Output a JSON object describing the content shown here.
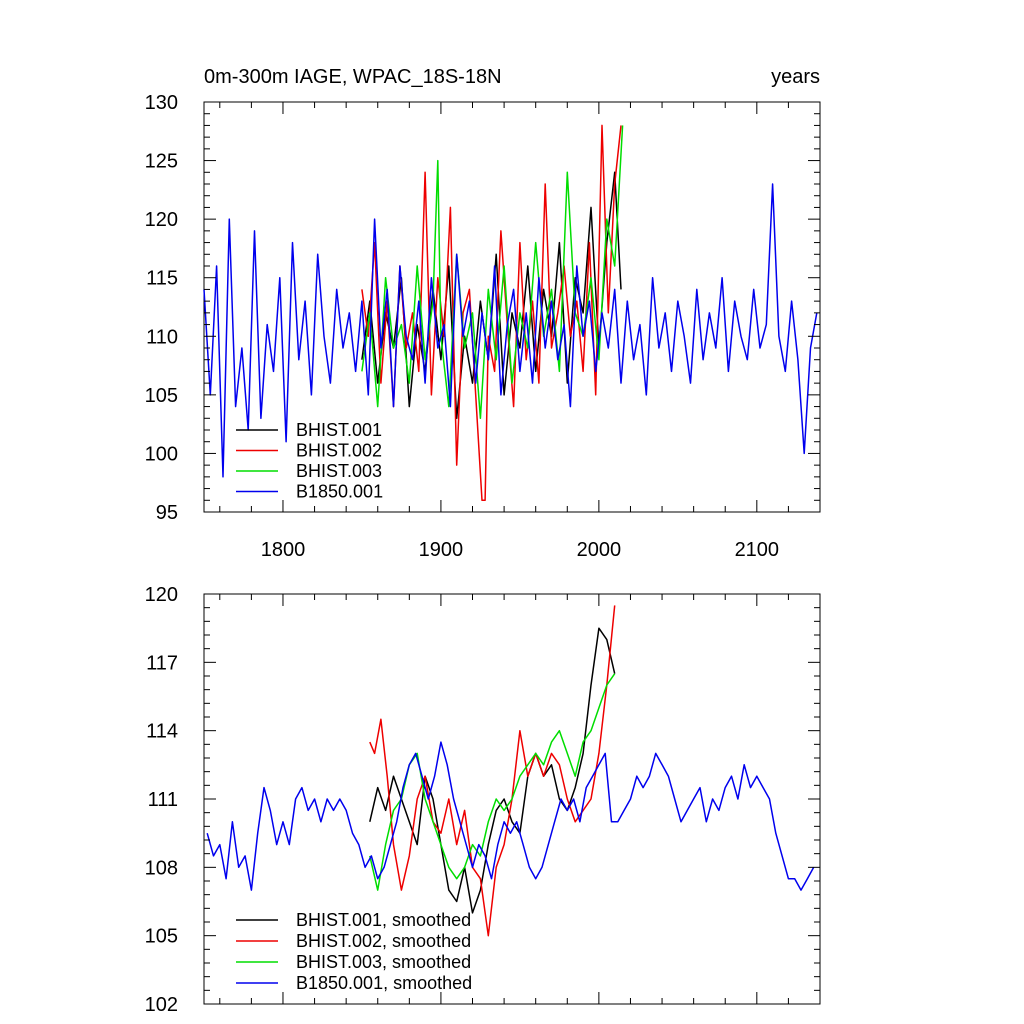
{
  "chart_data": [
    {
      "type": "line",
      "title": "0m-300m IAGE, WPAC_18S-18N",
      "units": "years",
      "xlim": [
        1750,
        2140
      ],
      "ylim": [
        95,
        130
      ],
      "xticks": [
        1800,
        1900,
        2000,
        2100
      ],
      "xtick_labels": [
        "1800",
        "1900",
        "2000",
        "2100"
      ],
      "yticks": [
        95,
        100,
        105,
        110,
        115,
        120,
        125,
        130
      ],
      "ytick_labels": [
        "95",
        "100",
        "105",
        "110",
        "115",
        "120",
        "125",
        "130"
      ],
      "legend": {
        "position": "bottom-left",
        "labels": [
          "BHIST.001",
          "BHIST.002",
          "BHIST.003",
          "B1850.001"
        ]
      },
      "series": [
        {
          "name": "BHIST.001",
          "color": "#000000",
          "x": [
            1850,
            1855,
            1860,
            1865,
            1870,
            1875,
            1880,
            1885,
            1890,
            1895,
            1900,
            1905,
            1910,
            1915,
            1920,
            1925,
            1930,
            1935,
            1940,
            1945,
            1950,
            1955,
            1960,
            1965,
            1970,
            1975,
            1980,
            1985,
            1990,
            1995,
            2000,
            2005,
            2010,
            2014
          ],
          "values": [
            108,
            113,
            106,
            112,
            109,
            115,
            104,
            111,
            107,
            114,
            108,
            116,
            103,
            110,
            106,
            113,
            108,
            117,
            105,
            112,
            109,
            116,
            107,
            114,
            110,
            118,
            106,
            115,
            112,
            121,
            109,
            118,
            124,
            114
          ]
        },
        {
          "name": "BHIST.002",
          "color": "#ee0000",
          "x": [
            1850,
            1854,
            1858,
            1862,
            1866,
            1870,
            1874,
            1878,
            1882,
            1886,
            1890,
            1894,
            1898,
            1902,
            1906,
            1910,
            1914,
            1918,
            1922,
            1926,
            1928,
            1930,
            1934,
            1938,
            1942,
            1946,
            1950,
            1954,
            1958,
            1962,
            1966,
            1970,
            1974,
            1978,
            1982,
            1986,
            1990,
            1994,
            1998,
            2002,
            2006,
            2010,
            2014
          ],
          "values": [
            114,
            110,
            118,
            106,
            113,
            104,
            116,
            109,
            112,
            107,
            124,
            105,
            115,
            110,
            121,
            99,
            112,
            114,
            105,
            96,
            96,
            110,
            107,
            119,
            111,
            104,
            118,
            108,
            113,
            106,
            123,
            109,
            112,
            116,
            110,
            113,
            107,
            118,
            105,
            128,
            112,
            123,
            128
          ]
        },
        {
          "name": "BHIST.003",
          "color": "#00dd00",
          "x": [
            1850,
            1855,
            1860,
            1865,
            1870,
            1875,
            1880,
            1885,
            1890,
            1895,
            1898,
            1900,
            1905,
            1910,
            1915,
            1920,
            1925,
            1930,
            1935,
            1940,
            1945,
            1950,
            1955,
            1960,
            1965,
            1970,
            1975,
            1980,
            1985,
            1990,
            1995,
            2000,
            2005,
            2010,
            2015
          ],
          "values": [
            107,
            112,
            104,
            115,
            109,
            111,
            106,
            116,
            108,
            113,
            125,
            110,
            104,
            117,
            109,
            112,
            103,
            114,
            108,
            116,
            106,
            112,
            109,
            118,
            110,
            114,
            107,
            124,
            112,
            110,
            115,
            108,
            120,
            116,
            128
          ]
        },
        {
          "name": "B1850.001",
          "color": "#0000ee",
          "x": [
            1750,
            1754,
            1758,
            1762,
            1766,
            1770,
            1774,
            1778,
            1782,
            1786,
            1790,
            1794,
            1798,
            1802,
            1806,
            1810,
            1814,
            1818,
            1822,
            1826,
            1830,
            1834,
            1838,
            1842,
            1846,
            1850,
            1854,
            1858,
            1862,
            1866,
            1870,
            1874,
            1878,
            1882,
            1886,
            1890,
            1894,
            1898,
            1902,
            1906,
            1910,
            1914,
            1918,
            1922,
            1926,
            1930,
            1934,
            1938,
            1942,
            1946,
            1950,
            1954,
            1958,
            1962,
            1966,
            1970,
            1974,
            1978,
            1982,
            1986,
            1990,
            1994,
            1998,
            2002,
            2006,
            2010,
            2014,
            2018,
            2022,
            2026,
            2030,
            2034,
            2038,
            2042,
            2046,
            2050,
            2054,
            2058,
            2062,
            2066,
            2070,
            2074,
            2078,
            2082,
            2086,
            2090,
            2094,
            2098,
            2102,
            2106,
            2110,
            2114,
            2118,
            2122,
            2126,
            2130,
            2134,
            2138
          ],
          "values": [
            114,
            105,
            116,
            98,
            120,
            104,
            109,
            102,
            119,
            103,
            111,
            107,
            115,
            101,
            118,
            108,
            113,
            105,
            117,
            110,
            106,
            114,
            109,
            112,
            107,
            113,
            105,
            120,
            109,
            114,
            104,
            116,
            110,
            108,
            113,
            106,
            115,
            109,
            111,
            104,
            117,
            110,
            113,
            106,
            112,
            108,
            116,
            105,
            111,
            114,
            107,
            112,
            106,
            115,
            109,
            113,
            108,
            111,
            104,
            116,
            110,
            113,
            107,
            112,
            109,
            114,
            106,
            113,
            108,
            111,
            105,
            115,
            109,
            112,
            107,
            113,
            110,
            106,
            114,
            108,
            112,
            109,
            115,
            107,
            113,
            110,
            108,
            114,
            109,
            111,
            123,
            110,
            107,
            113,
            108,
            100,
            109,
            112
          ]
        }
      ]
    },
    {
      "type": "line",
      "xlim": [
        1750,
        2140
      ],
      "ylim": [
        102,
        120
      ],
      "xticks": [
        1800,
        1900,
        2000,
        2100
      ],
      "yticks": [
        102,
        105,
        108,
        111,
        114,
        117,
        120
      ],
      "ytick_labels": [
        "102",
        "105",
        "108",
        "111",
        "114",
        "117",
        "120"
      ],
      "legend": {
        "position": "bottom-left",
        "labels": [
          "BHIST.001, smoothed",
          "BHIST.002, smoothed",
          "BHIST.003, smoothed",
          "B1850.001, smoothed"
        ]
      },
      "series": [
        {
          "name": "BHIST.001, smoothed",
          "color": "#000000",
          "x": [
            1855,
            1860,
            1865,
            1870,
            1875,
            1880,
            1885,
            1890,
            1895,
            1900,
            1905,
            1910,
            1915,
            1920,
            1925,
            1930,
            1935,
            1940,
            1945,
            1950,
            1955,
            1960,
            1965,
            1970,
            1975,
            1980,
            1985,
            1990,
            1995,
            2000,
            2005,
            2010
          ],
          "values": [
            110,
            111.5,
            110.5,
            112,
            111,
            110,
            109,
            112,
            111,
            109,
            107,
            106.5,
            108,
            106,
            107,
            109,
            110.5,
            111,
            110,
            109.5,
            112,
            113,
            112,
            112.5,
            111,
            110.5,
            111.5,
            113,
            116,
            118.5,
            118,
            116.5
          ]
        },
        {
          "name": "BHIST.002, smoothed",
          "color": "#ee0000",
          "x": [
            1855,
            1858,
            1862,
            1866,
            1870,
            1875,
            1880,
            1885,
            1890,
            1895,
            1900,
            1905,
            1910,
            1915,
            1920,
            1925,
            1930,
            1935,
            1940,
            1945,
            1950,
            1955,
            1960,
            1965,
            1970,
            1975,
            1980,
            1985,
            1990,
            1995,
            2000,
            2005,
            2010
          ],
          "values": [
            113.5,
            113,
            114.5,
            112,
            109,
            107,
            108.5,
            111,
            112,
            110,
            109.5,
            111,
            109,
            110.5,
            108,
            107.5,
            105,
            108,
            109,
            111,
            114,
            112,
            113,
            112,
            113,
            112.5,
            111,
            110,
            110.5,
            111,
            113,
            116,
            119.5
          ]
        },
        {
          "name": "BHIST.003, smoothed",
          "color": "#00dd00",
          "x": [
            1855,
            1860,
            1865,
            1870,
            1875,
            1880,
            1885,
            1890,
            1895,
            1900,
            1905,
            1910,
            1915,
            1920,
            1925,
            1930,
            1935,
            1940,
            1945,
            1950,
            1955,
            1960,
            1965,
            1970,
            1975,
            1980,
            1985,
            1990,
            1995,
            2000,
            2005,
            2010
          ],
          "values": [
            108.5,
            107,
            109,
            110.5,
            111,
            112.5,
            113,
            111,
            110,
            109,
            108,
            107.5,
            108,
            109,
            108.5,
            110,
            111,
            110.5,
            111,
            112,
            112.5,
            113,
            112.5,
            113.5,
            114,
            113,
            112,
            113.5,
            114,
            115,
            116,
            116.5
          ]
        },
        {
          "name": "B1850.001, smoothed",
          "color": "#0000ee",
          "x": [
            1752,
            1756,
            1760,
            1764,
            1768,
            1772,
            1776,
            1780,
            1784,
            1788,
            1792,
            1796,
            1800,
            1804,
            1808,
            1812,
            1816,
            1820,
            1824,
            1828,
            1832,
            1836,
            1840,
            1844,
            1848,
            1852,
            1856,
            1860,
            1864,
            1868,
            1872,
            1876,
            1880,
            1884,
            1888,
            1892,
            1896,
            1900,
            1904,
            1908,
            1912,
            1916,
            1920,
            1924,
            1928,
            1932,
            1936,
            1940,
            1944,
            1948,
            1952,
            1956,
            1960,
            1964,
            1968,
            1972,
            1976,
            1980,
            1984,
            1988,
            1992,
            1996,
            2000,
            2004,
            2008,
            2012,
            2016,
            2020,
            2024,
            2028,
            2032,
            2036,
            2040,
            2044,
            2048,
            2052,
            2056,
            2060,
            2064,
            2068,
            2072,
            2076,
            2080,
            2084,
            2088,
            2092,
            2096,
            2100,
            2104,
            2108,
            2112,
            2116,
            2120,
            2124,
            2128,
            2132,
            2136
          ],
          "values": [
            109.5,
            108.5,
            109,
            107.5,
            110,
            108,
            108.5,
            107,
            109.5,
            111.5,
            110.5,
            109,
            110,
            109,
            111,
            111.5,
            110.5,
            111,
            110,
            111,
            110.5,
            111,
            110.5,
            109.5,
            109,
            108,
            108.5,
            107.5,
            108,
            109,
            110,
            111.5,
            112.5,
            113,
            112,
            111,
            112,
            113.5,
            112.5,
            111,
            110,
            109,
            108,
            109,
            108.5,
            107.5,
            109,
            110,
            109.5,
            110,
            109,
            108,
            107.5,
            108,
            109,
            110,
            111,
            110.5,
            111,
            110,
            111.5,
            112,
            112.5,
            113,
            110,
            110,
            110.5,
            111,
            112,
            111.5,
            112,
            113,
            112.5,
            112,
            111,
            110,
            110.5,
            111,
            111.5,
            110,
            111,
            110.5,
            111.5,
            112,
            111,
            112.5,
            111.5,
            112,
            111.5,
            111,
            109.5,
            108.5,
            107.5,
            107.5,
            107,
            107.5,
            108
          ]
        }
      ]
    }
  ]
}
